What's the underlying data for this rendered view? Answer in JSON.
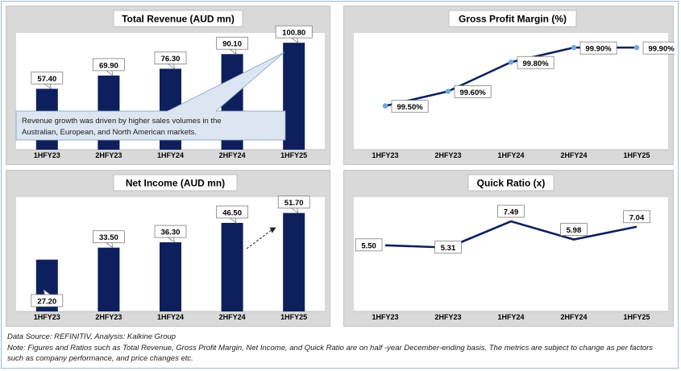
{
  "chart_data": [
    {
      "type": "bar",
      "title": "Total Revenue (AUD mn)",
      "categories": [
        "1HFY23",
        "2HFY23",
        "1HFY24",
        "2HFY24",
        "1HFY25"
      ],
      "values": [
        57.4,
        69.9,
        76.3,
        90.1,
        100.8
      ],
      "labels": [
        "57.40",
        "69.90",
        "76.30",
        "90.10",
        "100.80"
      ],
      "ylim": [
        0,
        110
      ],
      "bar_color": "#0d1f5c",
      "annotation": "Revenue growth was driven by higher sales volumes in the Australian, European, and North American markets."
    },
    {
      "type": "line",
      "title": "Gross Profit Margin (%)",
      "categories": [
        "1HFY23",
        "2HFY23",
        "1HFY24",
        "2HFY24",
        "1HFY25"
      ],
      "values": [
        99.5,
        99.6,
        99.8,
        99.9,
        99.9
      ],
      "labels": [
        "99.50%",
        "99.60%",
        "99.80%",
        "99.90%",
        "99.90%"
      ],
      "ylim": [
        99.2,
        100.0
      ],
      "line_color": "#0d1f5c",
      "marker_color": "#6fa8dc"
    },
    {
      "type": "bar",
      "title": "Net Income (AUD mn)",
      "categories": [
        "1HFY23",
        "2HFY23",
        "1HFY24",
        "2HFY24",
        "1HFY25"
      ],
      "values": [
        27.2,
        33.5,
        36.3,
        46.5,
        51.7
      ],
      "labels": [
        "27.20",
        "33.50",
        "36.30",
        "46.50",
        "51.70"
      ],
      "ylim": [
        0,
        60
      ],
      "bar_color": "#0d1f5c"
    },
    {
      "type": "line",
      "title": "Quick Ratio (x)",
      "categories": [
        "1HFY23",
        "2HFY23",
        "1HFY24",
        "2HFY24",
        "1HFY25"
      ],
      "values": [
        5.5,
        5.31,
        7.49,
        5.98,
        7.04
      ],
      "labels": [
        "5.50",
        "5.31",
        "7.49",
        "5.98",
        "7.04"
      ],
      "ylim": [
        0,
        9.5
      ],
      "line_color": "#0d1f5c"
    }
  ],
  "footnotes": {
    "source": "Data Source: REFINITIV, Analysis: Kalkine Group",
    "note": "Note: Figures and Ratios such as Total Revenue, Gross Profit Margin, Net Income, and Quick Ratio are on half -year December-ending basis. The metrics are subject to change as per factors such as company performance, and price changes etc."
  }
}
